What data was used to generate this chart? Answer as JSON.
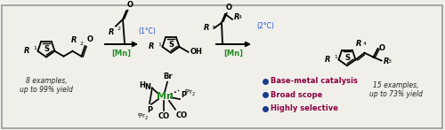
{
  "bg_color": "#f0efea",
  "border_color": "#999999",
  "left_examples": "8 examples,\nup to 99% yield",
  "right_examples": "15 examples,\nup to 73% yield",
  "bullet_points": [
    "Base-metal catalysis",
    "Broad scope",
    "Highly selective"
  ],
  "bullet_color": "#8b0040",
  "bullet_dot_color": "#1a3a8c",
  "mn_color": "#228B22",
  "condition1": "(1°C)",
  "condition2": "(2°C)",
  "mn_label": "[Mn]",
  "text_color": "#1a1a1a"
}
